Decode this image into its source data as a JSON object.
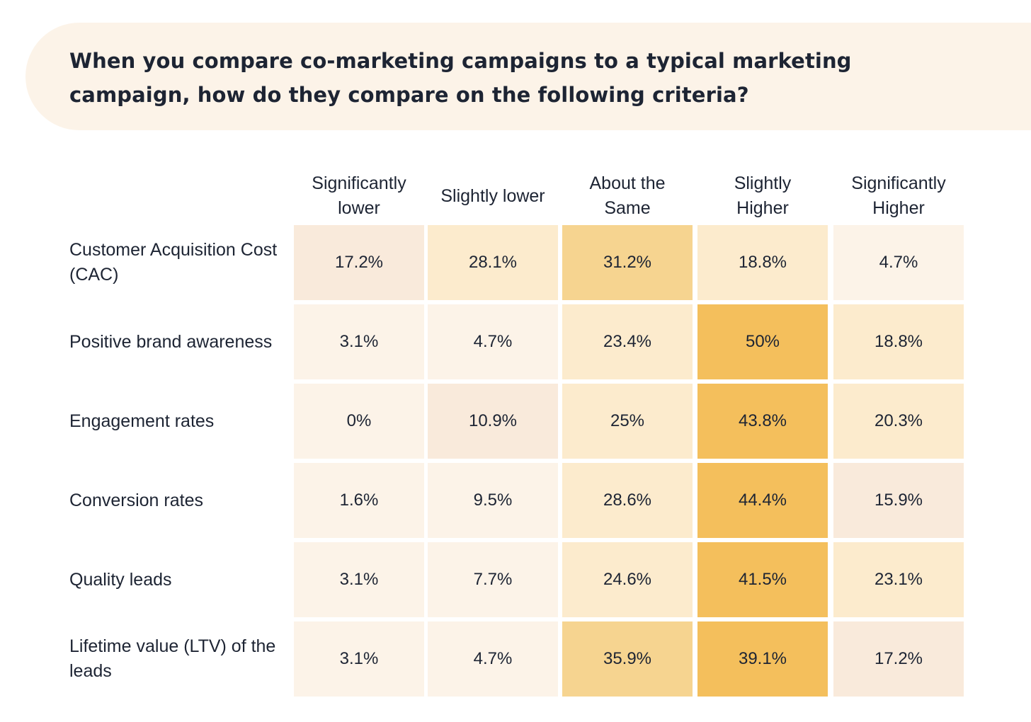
{
  "title": "When you compare co-marketing campaigns to a typical marketing campaign, how do they compare on the following criteria?",
  "chart_data": {
    "type": "heatmap",
    "title": "When you compare co-marketing campaigns to a typical marketing campaign, how do they compare on the following criteria?",
    "columns": [
      "Significantly lower",
      "Slightly lower",
      "About the Same",
      "Slightly Higher",
      "Significantly Higher"
    ],
    "rows": [
      {
        "label": "Customer Acquisition Cost (CAC)",
        "values": [
          "17.2%",
          "28.1%",
          "31.2%",
          "18.8%",
          "4.7%"
        ]
      },
      {
        "label": "Positive brand awareness",
        "values": [
          "3.1%",
          "4.7%",
          "23.4%",
          "50%",
          "18.8%"
        ]
      },
      {
        "label": "Engagement rates",
        "values": [
          "0%",
          "10.9%",
          "25%",
          "43.8%",
          "20.3%"
        ]
      },
      {
        "label": "Conversion rates",
        "values": [
          "1.6%",
          "9.5%",
          "28.6%",
          "44.4%",
          "15.9%"
        ]
      },
      {
        "label": "Quality leads",
        "values": [
          "3.1%",
          "7.7%",
          "24.6%",
          "41.5%",
          "23.1%"
        ]
      },
      {
        "label": "Lifetime value (LTV) of the leads",
        "values": [
          "3.1%",
          "4.7%",
          "35.9%",
          "39.1%",
          "17.2%"
        ]
      }
    ],
    "colors": {
      "banner": "#fcf3e8",
      "text": "#1d2433",
      "scale_low": "#fcf3e8",
      "scale_peach": "#f9eadb",
      "scale_light_yellow": "#fcebcd",
      "scale_mid": "#f6d490",
      "scale_strong": "#f4bf5c"
    }
  }
}
